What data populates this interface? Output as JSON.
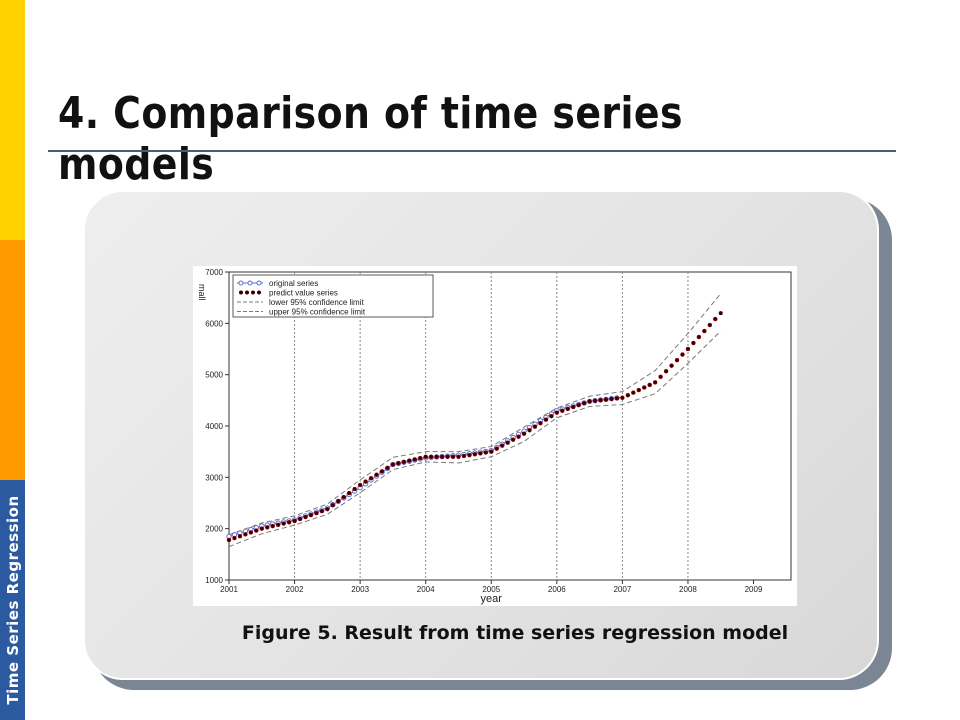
{
  "sidebar": {
    "label": "Time Series Regression"
  },
  "slide": {
    "title": "4. Comparison of time series models",
    "caption": "Figure 5. Result from time series regression model"
  },
  "chart_data": {
    "type": "line",
    "title": "",
    "xlabel": "year",
    "ylabel": "mall",
    "xlim": [
      2001,
      2009
    ],
    "ylim": [
      1000,
      7000
    ],
    "x_ticks": [
      "2001",
      "2002",
      "2003",
      "2004",
      "2005",
      "2006",
      "2007",
      "2008",
      "2009"
    ],
    "y_ticks": [
      "1000",
      "2000",
      "3000",
      "4000",
      "5000",
      "6000",
      "7000"
    ],
    "vertical_reference_lines": [
      2002,
      2003,
      2004,
      2005,
      2006,
      2007,
      2008
    ],
    "legend": {
      "placement": "top-left"
    },
    "series": [
      {
        "name": "original series",
        "style": "line-open-circles",
        "color": "#5a6fd0",
        "x": [
          2001.0,
          2001.5,
          2002.0,
          2002.5,
          2003.0,
          2003.5,
          2004.0,
          2004.5,
          2005.0,
          2005.5,
          2006.0,
          2006.5,
          2007.0
        ],
        "values": [
          1850,
          2050,
          2170,
          2400,
          2800,
          3250,
          3380,
          3430,
          3520,
          3900,
          4300,
          4480,
          4560
        ]
      },
      {
        "name": "predict value series",
        "style": "dotted-filled",
        "color": "#3a0000",
        "x": [
          2001.0,
          2001.5,
          2002.0,
          2002.5,
          2003.0,
          2003.5,
          2004.0,
          2004.5,
          2005.0,
          2005.5,
          2006.0,
          2006.5,
          2007.0,
          2007.5,
          2008.0,
          2008.5
        ],
        "values": [
          1780,
          2000,
          2150,
          2380,
          2850,
          3250,
          3400,
          3400,
          3500,
          3850,
          4260,
          4480,
          4550,
          4850,
          5500,
          6200
        ]
      },
      {
        "name": "lower 95% confidence limit",
        "style": "dashed",
        "color": "#777777",
        "x": [
          2001.0,
          2001.5,
          2002.0,
          2002.5,
          2003.0,
          2003.5,
          2004.0,
          2004.5,
          2005.0,
          2005.5,
          2006.0,
          2006.5,
          2007.0,
          2007.5,
          2008.0,
          2008.5
        ],
        "values": [
          1650,
          1900,
          2070,
          2280,
          2700,
          3150,
          3300,
          3280,
          3400,
          3700,
          4160,
          4380,
          4420,
          4630,
          5220,
          5850
        ]
      },
      {
        "name": "upper 95% confidence limit",
        "style": "dashed",
        "color": "#777777",
        "x": [
          2001.0,
          2001.5,
          2002.0,
          2002.5,
          2003.0,
          2003.5,
          2004.0,
          2004.5,
          2005.0,
          2005.5,
          2006.0,
          2006.5,
          2007.0,
          2007.5,
          2008.0,
          2008.5
        ],
        "values": [
          1880,
          2110,
          2250,
          2480,
          2950,
          3390,
          3500,
          3500,
          3600,
          3980,
          4350,
          4580,
          4670,
          5080,
          5800,
          6580
        ]
      }
    ]
  }
}
